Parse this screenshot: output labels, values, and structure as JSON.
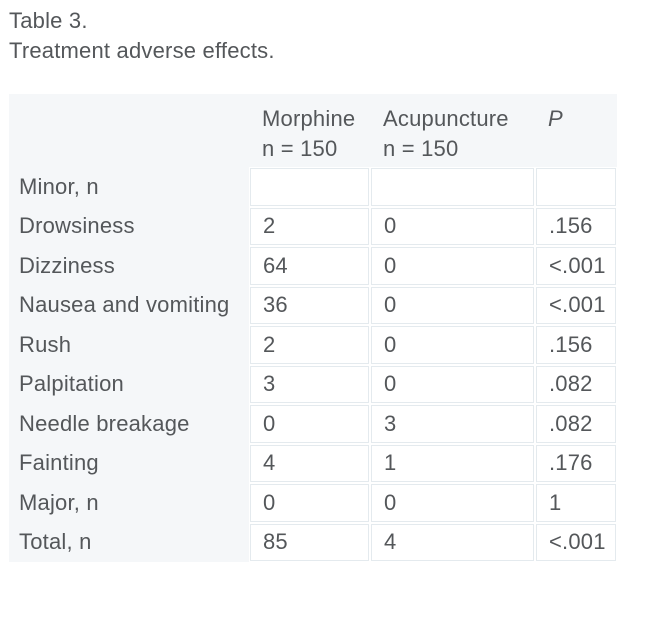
{
  "caption": {
    "label": "Table 3.",
    "title": "Treatment adverse effects."
  },
  "table": {
    "columns": [
      {
        "label": "",
        "sublabel": ""
      },
      {
        "label": "Morphine",
        "sublabel": "n = 150"
      },
      {
        "label": "Acupuncture",
        "sublabel": "n = 150"
      },
      {
        "label": "P",
        "sublabel": ""
      }
    ],
    "rows": [
      {
        "label": "Minor, n",
        "morphine": "",
        "acupuncture": "",
        "p": ""
      },
      {
        "label": "Drowsiness",
        "morphine": "2",
        "acupuncture": "0",
        "p": ".156"
      },
      {
        "label": "Dizziness",
        "morphine": "64",
        "acupuncture": "0",
        "p": "<.001"
      },
      {
        "label": "Nausea and vomiting",
        "morphine": "36",
        "acupuncture": "0",
        "p": "<.001"
      },
      {
        "label": "Rush",
        "morphine": "2",
        "acupuncture": "0",
        "p": ".156"
      },
      {
        "label": "Palpitation",
        "morphine": "3",
        "acupuncture": "0",
        "p": ".082"
      },
      {
        "label": "Needle breakage",
        "morphine": "0",
        "acupuncture": "3",
        "p": ".082"
      },
      {
        "label": "Fainting",
        "morphine": "4",
        "acupuncture": "1",
        "p": ".176"
      },
      {
        "label": "Major, n",
        "morphine": "0",
        "acupuncture": "0",
        "p": "1"
      },
      {
        "label": "Total, n",
        "morphine": "85",
        "acupuncture": "4",
        "p": "<.001"
      }
    ]
  },
  "colors": {
    "page_bg": "#ffffff",
    "shaded_bg": "#f5f7f9",
    "cell_bg": "#ffffff",
    "cell_border": "#e4eaee",
    "text": "#54575a"
  }
}
